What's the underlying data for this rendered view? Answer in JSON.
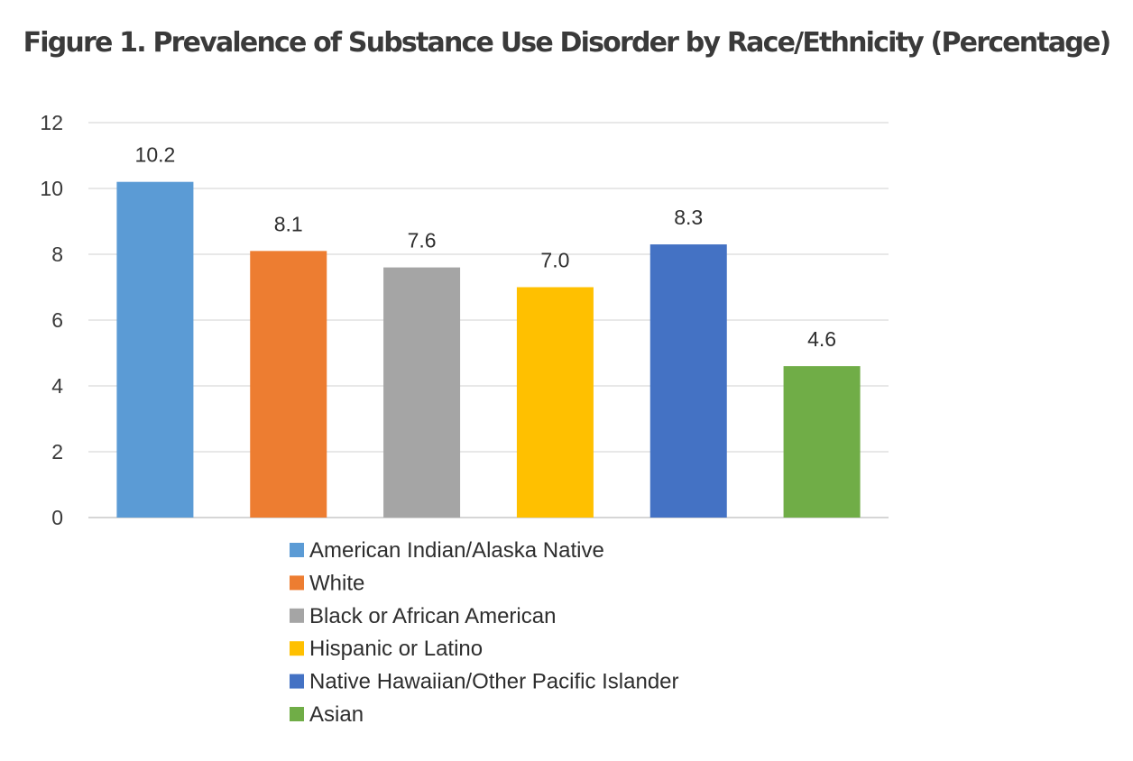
{
  "chart_data": {
    "type": "bar",
    "title": "Figure 1. Prevalence of Substance Use Disorder by Race/Ethnicity (Percentage)",
    "xlabel": "",
    "ylabel": "",
    "ylim": [
      0,
      12
    ],
    "yticks": [
      0,
      2,
      4,
      6,
      8,
      10,
      12
    ],
    "grid": true,
    "legend_position": "bottom",
    "series": [
      {
        "name": "American Indian/Alaska Native",
        "value": 10.2,
        "label": "10.2",
        "color": "#5B9BD5"
      },
      {
        "name": "White",
        "value": 8.1,
        "label": "8.1",
        "color": "#ED7D31"
      },
      {
        "name": "Black or African American",
        "value": 7.6,
        "label": "7.6",
        "color": "#A5A5A5"
      },
      {
        "name": "Hispanic or Latino",
        "value": 7.0,
        "label": "7.0",
        "color": "#FFC000"
      },
      {
        "name": "Native Hawaiian/Other Pacific Islander",
        "value": 8.3,
        "label": "8.3",
        "color": "#4472C4"
      },
      {
        "name": "Asian",
        "value": 4.6,
        "label": "4.6",
        "color": "#70AD47"
      }
    ]
  }
}
